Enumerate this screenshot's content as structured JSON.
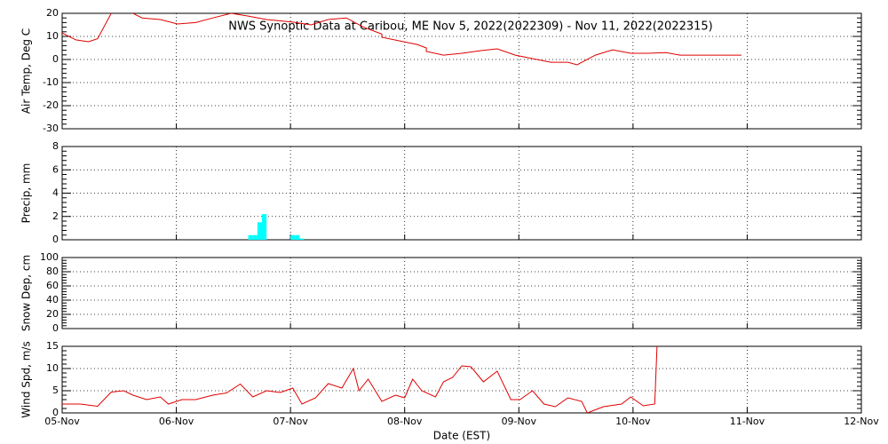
{
  "chart_data": [
    {
      "type": "line",
      "title": "NWS Synoptic Data at Caribou, ME   Nov  5, 2022(2022309) - Nov 11, 2022(2022315)",
      "ylabel": "Air Temp, Deg C",
      "color": "#e00000",
      "x": [
        0,
        0.12,
        0.23,
        0.31,
        0.43,
        0.54,
        0.7,
        0.86,
        1.01,
        1.17,
        1.32,
        1.48,
        1.63,
        1.79,
        2.02,
        2.18,
        2.33,
        2.49,
        2.64,
        2.8,
        2.8,
        3.11,
        3.19,
        3.19,
        3.34,
        3.5,
        3.66,
        3.81,
        3.97,
        4.12,
        4.28,
        4.43,
        4.51,
        4.67,
        4.82,
        4.98,
        5.13,
        5.29,
        5.41,
        5.95
      ],
      "values": [
        11.5,
        8.5,
        7.7,
        9,
        20,
        22,
        18,
        17.3,
        15.4,
        16,
        18,
        20,
        18.8,
        17.3,
        16.2,
        15,
        17.3,
        18,
        14,
        11,
        9.6,
        6.5,
        5,
        3.5,
        1.9,
        2.7,
        3.8,
        4.6,
        1.9,
        0.4,
        -1.2,
        -1.2,
        -2.3,
        1.9,
        4.2,
        2.7,
        2.7,
        3,
        1.9,
        1.9
      ],
      "ylim": [
        -30,
        20
      ],
      "yticks": [
        -30,
        -20,
        -10,
        0,
        10,
        20
      ],
      "grid": true
    },
    {
      "type": "bar",
      "ylabel": "Precip, mm",
      "color": "#00ffff",
      "x": [
        1.65,
        1.69,
        1.73,
        1.77,
        2.02,
        2.06,
        2.1
      ],
      "values": [
        0.4,
        0.4,
        1.5,
        2.2,
        0.4,
        0.4,
        0.1
      ],
      "ylim": [
        0,
        8
      ],
      "yticks": [
        0,
        2,
        4,
        6,
        8
      ],
      "grid": true
    },
    {
      "type": "line",
      "ylabel": "Snow Dep, cm",
      "color": "#e00000",
      "ylim": [
        0,
        100
      ],
      "yticks": [
        0,
        20,
        40,
        60,
        80,
        100
      ],
      "grid": true
    },
    {
      "type": "line",
      "ylabel": "Wind Spd, m/s",
      "xlabel": "Date (EST)",
      "color": "#e00000",
      "x": [
        0,
        0.16,
        0.31,
        0.43,
        0.54,
        0.62,
        0.74,
        0.86,
        0.93,
        1.05,
        1.17,
        1.32,
        1.44,
        1.56,
        1.67,
        1.79,
        1.91,
        2.02,
        2.1,
        2.22,
        2.33,
        2.45,
        2.55,
        2.6,
        2.68,
        2.8,
        2.92,
        3.0,
        3.07,
        3.15,
        3.27,
        3.34,
        3.42,
        3.5,
        3.58,
        3.69,
        3.81,
        3.93,
        4.01,
        4.12,
        4.22,
        4.32,
        4.43,
        4.55,
        4.6,
        4.74,
        4.9,
        4.98,
        5.09,
        5.19,
        5.21
      ],
      "values": [
        2,
        2,
        1.5,
        4.7,
        5,
        4,
        3,
        3.6,
        2,
        3,
        3,
        4,
        4.5,
        6.5,
        3.6,
        5,
        4.6,
        5.6,
        2,
        3.4,
        6.6,
        5.6,
        10,
        5,
        7.6,
        2.6,
        4,
        3.4,
        7.6,
        5,
        3.6,
        7,
        8,
        10.6,
        10.4,
        7,
        9.4,
        3,
        3,
        5,
        2,
        1.4,
        3.4,
        2.6,
        0,
        1.4,
        2,
        3.6,
        1.6,
        2,
        15
      ],
      "ylim": [
        0,
        15
      ],
      "yticks": [
        0,
        5,
        10,
        15
      ],
      "grid": true,
      "xlim": [
        0,
        7
      ],
      "xticks": [
        {
          "value": 0,
          "label": "05-Nov"
        },
        {
          "value": 1,
          "label": "06-Nov"
        },
        {
          "value": 2,
          "label": "07-Nov"
        },
        {
          "value": 3,
          "label": "08-Nov"
        },
        {
          "value": 4,
          "label": "09-Nov"
        },
        {
          "value": 5,
          "label": "10-Nov"
        },
        {
          "value": 6,
          "label": "11-Nov"
        },
        {
          "value": 7,
          "label": "12-Nov"
        }
      ]
    }
  ]
}
